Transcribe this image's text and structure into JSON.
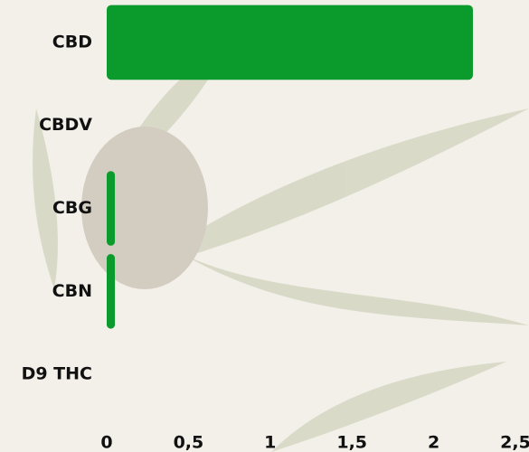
{
  "chart_data": {
    "type": "bar",
    "orientation": "horizontal",
    "categories": [
      "CBD",
      "CBDV",
      "CBG",
      "CBN",
      "D9 THC"
    ],
    "values": [
      2.24,
      0,
      0.05,
      0.05,
      0
    ],
    "color": "#0b9b2c",
    "xlim": [
      0,
      2.5
    ],
    "xticks": [
      0,
      {
        "value": 0.5,
        "label": "0,5"
      },
      1,
      {
        "value": 1.5,
        "label": "1,5"
      },
      2,
      {
        "value": 2.5,
        "label": "2,5"
      }
    ],
    "grid": false
  }
}
